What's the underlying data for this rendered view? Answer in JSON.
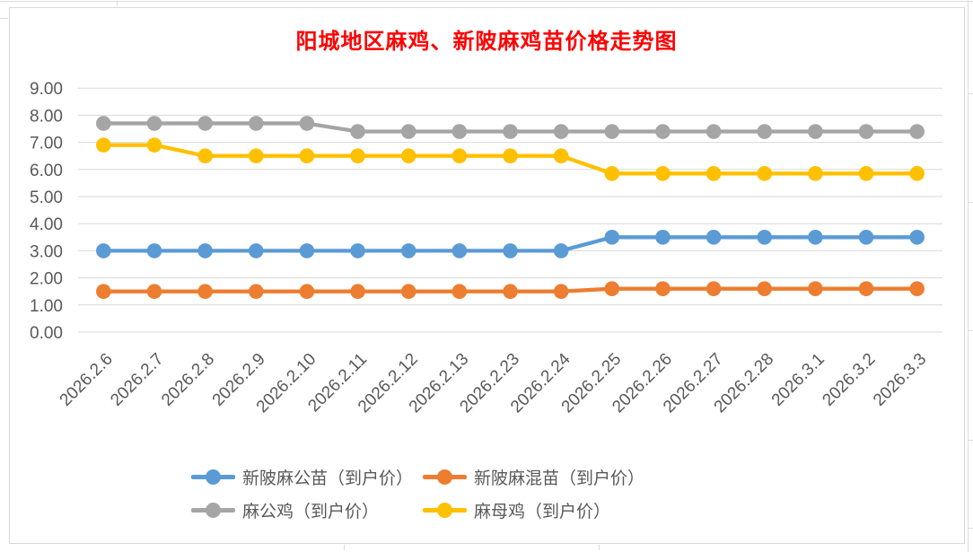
{
  "chart_data": {
    "type": "line",
    "title": "阳城地区麻鸡、新陂麻鸡苗价格走势图",
    "title_color": "#FF0000",
    "categories": [
      "2026.2.6",
      "2026.2.7",
      "2026.2.8",
      "2026.2.9",
      "2026.2.10",
      "2026.2.11",
      "2026.2.12",
      "2026.2.13",
      "2026.2.23",
      "2026.2.24",
      "2026.2.25",
      "2026.2.26",
      "2026.2.27",
      "2026.2.28",
      "2026.3.1",
      "2026.3.2",
      "2026.3.3"
    ],
    "series": [
      {
        "name": "新陂麻公苗（到户价）",
        "color": "#5B9BD5",
        "values": [
          3.0,
          3.0,
          3.0,
          3.0,
          3.0,
          3.0,
          3.0,
          3.0,
          3.0,
          3.0,
          3.5,
          3.5,
          3.5,
          3.5,
          3.5,
          3.5,
          3.5
        ]
      },
      {
        "name": "新陂麻混苗（到户价）",
        "color": "#ED7D31",
        "values": [
          1.5,
          1.5,
          1.5,
          1.5,
          1.5,
          1.5,
          1.5,
          1.5,
          1.5,
          1.5,
          1.6,
          1.6,
          1.6,
          1.6,
          1.6,
          1.6,
          1.6
        ]
      },
      {
        "name": "麻公鸡（到户价）",
        "color": "#A5A5A5",
        "values": [
          7.7,
          7.7,
          7.7,
          7.7,
          7.7,
          7.4,
          7.4,
          7.4,
          7.4,
          7.4,
          7.4,
          7.4,
          7.4,
          7.4,
          7.4,
          7.4,
          7.4
        ]
      },
      {
        "name": "麻母鸡（到户价）",
        "color": "#FFC000",
        "values": [
          6.9,
          6.9,
          6.5,
          6.5,
          6.5,
          6.5,
          6.5,
          6.5,
          6.5,
          6.5,
          5.85,
          5.85,
          5.85,
          5.85,
          5.85,
          5.85,
          5.85
        ]
      }
    ],
    "xlabel": "",
    "ylabel": "",
    "ylim": [
      0,
      9
    ],
    "ytick_step": 1,
    "ytick_labels": [
      "0.00",
      "1.00",
      "2.00",
      "3.00",
      "4.00",
      "5.00",
      "6.00",
      "7.00",
      "8.00",
      "9.00"
    ],
    "grid": true,
    "legend_position": "bottom",
    "axis_text_color": "#595959",
    "grid_color": "#D9D9D9"
  }
}
